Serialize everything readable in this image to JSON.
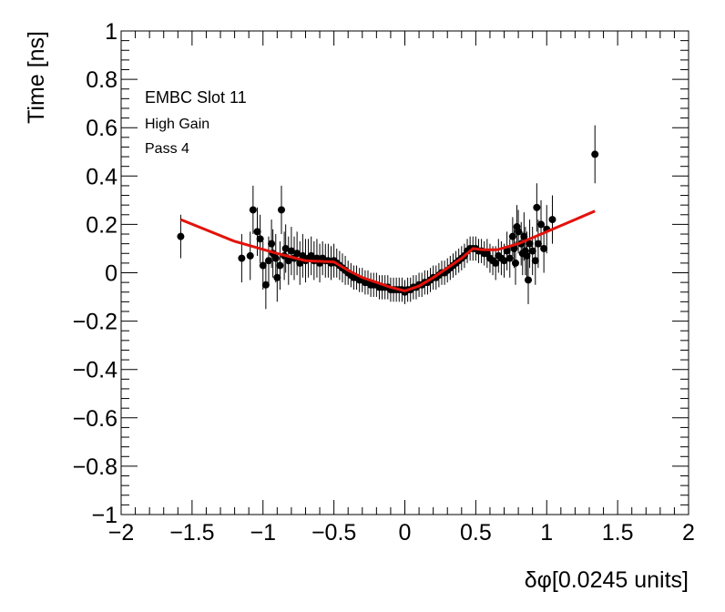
{
  "chart_data": {
    "type": "scatter",
    "title": "",
    "xlabel": "δφ[0.0245 units]",
    "ylabel": "Time [ns]",
    "xlim": [
      -2,
      2
    ],
    "ylim": [
      -1,
      1
    ],
    "x_ticks": [
      {
        "v": -2,
        "label": "−2"
      },
      {
        "v": -1.5,
        "label": "−1.5"
      },
      {
        "v": -1,
        "label": "−1"
      },
      {
        "v": -0.5,
        "label": "−0.5"
      },
      {
        "v": 0,
        "label": "0"
      },
      {
        "v": 0.5,
        "label": "0.5"
      },
      {
        "v": 1,
        "label": "1"
      },
      {
        "v": 1.5,
        "label": "1.5"
      },
      {
        "v": 2,
        "label": "2"
      }
    ],
    "y_ticks": [
      {
        "v": -1,
        "label": "−1"
      },
      {
        "v": -0.8,
        "label": "−0.8"
      },
      {
        "v": -0.6,
        "label": "−0.6"
      },
      {
        "v": -0.4,
        "label": "−0.4"
      },
      {
        "v": -0.2,
        "label": "−0.2"
      },
      {
        "v": 0,
        "label": "0"
      },
      {
        "v": 0.2,
        "label": "0.2"
      },
      {
        "v": 0.4,
        "label": "0.4"
      },
      {
        "v": 0.6,
        "label": "0.6"
      },
      {
        "v": 0.8,
        "label": "0.8"
      },
      {
        "v": 1,
        "label": "1"
      }
    ],
    "annotations": [
      "EMBC Slot 11",
      "High Gain",
      "Pass 4"
    ],
    "grid": false,
    "colors": {
      "points": "#000000",
      "fit": "#e3120b"
    },
    "points": [
      {
        "x": -1.58,
        "y": 0.15,
        "err": 0.09
      },
      {
        "x": -1.15,
        "y": 0.06,
        "err": 0.1
      },
      {
        "x": -1.09,
        "y": 0.07,
        "err": 0.1
      },
      {
        "x": -1.07,
        "y": 0.26,
        "err": 0.1
      },
      {
        "x": -1.04,
        "y": 0.17,
        "err": 0.1
      },
      {
        "x": -1.02,
        "y": 0.14,
        "err": 0.1
      },
      {
        "x": -1.0,
        "y": 0.03,
        "err": 0.1
      },
      {
        "x": -0.98,
        "y": -0.05,
        "err": 0.1
      },
      {
        "x": -0.96,
        "y": 0.05,
        "err": 0.1
      },
      {
        "x": -0.94,
        "y": 0.12,
        "err": 0.1
      },
      {
        "x": -0.93,
        "y": 0.08,
        "err": 0.1
      },
      {
        "x": -0.91,
        "y": 0.06,
        "err": 0.1
      },
      {
        "x": -0.9,
        "y": -0.02,
        "err": 0.1
      },
      {
        "x": -0.88,
        "y": 0.03,
        "err": 0.1
      },
      {
        "x": -0.87,
        "y": 0.26,
        "err": 0.1
      },
      {
        "x": -0.85,
        "y": 0.07,
        "err": 0.1
      },
      {
        "x": -0.84,
        "y": 0.1,
        "err": 0.1
      },
      {
        "x": -0.82,
        "y": 0.05,
        "err": 0.1
      },
      {
        "x": -0.8,
        "y": 0.09,
        "err": 0.1
      },
      {
        "x": -0.78,
        "y": 0.06,
        "err": 0.09
      },
      {
        "x": -0.76,
        "y": 0.08,
        "err": 0.09
      },
      {
        "x": -0.74,
        "y": 0.04,
        "err": 0.09
      },
      {
        "x": -0.72,
        "y": 0.07,
        "err": 0.09
      },
      {
        "x": -0.7,
        "y": 0.05,
        "err": 0.09
      },
      {
        "x": -0.68,
        "y": 0.06,
        "err": 0.08
      },
      {
        "x": -0.66,
        "y": 0.07,
        "err": 0.08
      },
      {
        "x": -0.64,
        "y": 0.05,
        "err": 0.08
      },
      {
        "x": -0.62,
        "y": 0.06,
        "err": 0.08
      },
      {
        "x": -0.6,
        "y": 0.04,
        "err": 0.08
      },
      {
        "x": -0.58,
        "y": 0.06,
        "err": 0.07
      },
      {
        "x": -0.56,
        "y": 0.05,
        "err": 0.07
      },
      {
        "x": -0.54,
        "y": 0.05,
        "err": 0.07
      },
      {
        "x": -0.52,
        "y": 0.04,
        "err": 0.07
      },
      {
        "x": -0.5,
        "y": 0.05,
        "err": 0.07
      },
      {
        "x": -0.48,
        "y": 0.04,
        "err": 0.06
      },
      {
        "x": -0.46,
        "y": 0.03,
        "err": 0.06
      },
      {
        "x": -0.44,
        "y": 0.02,
        "err": 0.06
      },
      {
        "x": -0.42,
        "y": 0.01,
        "err": 0.06
      },
      {
        "x": -0.4,
        "y": 0.0,
        "err": 0.05
      },
      {
        "x": -0.38,
        "y": -0.01,
        "err": 0.05
      },
      {
        "x": -0.36,
        "y": -0.02,
        "err": 0.05
      },
      {
        "x": -0.34,
        "y": -0.02,
        "err": 0.05
      },
      {
        "x": -0.32,
        "y": -0.03,
        "err": 0.05
      },
      {
        "x": -0.3,
        "y": -0.03,
        "err": 0.05
      },
      {
        "x": -0.28,
        "y": -0.04,
        "err": 0.05
      },
      {
        "x": -0.26,
        "y": -0.04,
        "err": 0.05
      },
      {
        "x": -0.24,
        "y": -0.05,
        "err": 0.05
      },
      {
        "x": -0.22,
        "y": -0.05,
        "err": 0.05
      },
      {
        "x": -0.2,
        "y": -0.05,
        "err": 0.05
      },
      {
        "x": -0.18,
        "y": -0.06,
        "err": 0.05
      },
      {
        "x": -0.16,
        "y": -0.06,
        "err": 0.05
      },
      {
        "x": -0.14,
        "y": -0.06,
        "err": 0.05
      },
      {
        "x": -0.12,
        "y": -0.06,
        "err": 0.05
      },
      {
        "x": -0.1,
        "y": -0.07,
        "err": 0.05
      },
      {
        "x": -0.08,
        "y": -0.07,
        "err": 0.05
      },
      {
        "x": -0.06,
        "y": -0.07,
        "err": 0.05
      },
      {
        "x": -0.04,
        "y": -0.07,
        "err": 0.05
      },
      {
        "x": -0.02,
        "y": -0.07,
        "err": 0.05
      },
      {
        "x": 0.0,
        "y": -0.08,
        "err": 0.05
      },
      {
        "x": 0.02,
        "y": -0.07,
        "err": 0.05
      },
      {
        "x": 0.04,
        "y": -0.07,
        "err": 0.05
      },
      {
        "x": 0.06,
        "y": -0.06,
        "err": 0.05
      },
      {
        "x": 0.08,
        "y": -0.06,
        "err": 0.05
      },
      {
        "x": 0.1,
        "y": -0.05,
        "err": 0.05
      },
      {
        "x": 0.12,
        "y": -0.05,
        "err": 0.05
      },
      {
        "x": 0.14,
        "y": -0.04,
        "err": 0.05
      },
      {
        "x": 0.16,
        "y": -0.04,
        "err": 0.05
      },
      {
        "x": 0.18,
        "y": -0.03,
        "err": 0.05
      },
      {
        "x": 0.2,
        "y": -0.02,
        "err": 0.05
      },
      {
        "x": 0.22,
        "y": -0.02,
        "err": 0.05
      },
      {
        "x": 0.24,
        "y": -0.01,
        "err": 0.05
      },
      {
        "x": 0.26,
        "y": 0.0,
        "err": 0.05
      },
      {
        "x": 0.28,
        "y": 0.0,
        "err": 0.05
      },
      {
        "x": 0.3,
        "y": 0.01,
        "err": 0.05
      },
      {
        "x": 0.32,
        "y": 0.02,
        "err": 0.05
      },
      {
        "x": 0.34,
        "y": 0.03,
        "err": 0.05
      },
      {
        "x": 0.36,
        "y": 0.04,
        "err": 0.05
      },
      {
        "x": 0.38,
        "y": 0.05,
        "err": 0.05
      },
      {
        "x": 0.4,
        "y": 0.06,
        "err": 0.05
      },
      {
        "x": 0.42,
        "y": 0.07,
        "err": 0.05
      },
      {
        "x": 0.44,
        "y": 0.09,
        "err": 0.05
      },
      {
        "x": 0.46,
        "y": 0.1,
        "err": 0.05
      },
      {
        "x": 0.48,
        "y": 0.1,
        "err": 0.05
      },
      {
        "x": 0.5,
        "y": 0.1,
        "err": 0.05
      },
      {
        "x": 0.52,
        "y": 0.09,
        "err": 0.05
      },
      {
        "x": 0.54,
        "y": 0.09,
        "err": 0.05
      },
      {
        "x": 0.56,
        "y": 0.08,
        "err": 0.05
      },
      {
        "x": 0.58,
        "y": 0.08,
        "err": 0.06
      },
      {
        "x": 0.6,
        "y": 0.06,
        "err": 0.06
      },
      {
        "x": 0.62,
        "y": 0.05,
        "err": 0.06
      },
      {
        "x": 0.64,
        "y": 0.04,
        "err": 0.07
      },
      {
        "x": 0.66,
        "y": 0.07,
        "err": 0.07
      },
      {
        "x": 0.68,
        "y": 0.06,
        "err": 0.07
      },
      {
        "x": 0.7,
        "y": 0.05,
        "err": 0.07
      },
      {
        "x": 0.72,
        "y": 0.09,
        "err": 0.08
      },
      {
        "x": 0.74,
        "y": 0.06,
        "err": 0.08
      },
      {
        "x": 0.76,
        "y": 0.15,
        "err": 0.08
      },
      {
        "x": 0.77,
        "y": 0.1,
        "err": 0.08
      },
      {
        "x": 0.78,
        "y": 0.04,
        "err": 0.09
      },
      {
        "x": 0.79,
        "y": 0.19,
        "err": 0.09
      },
      {
        "x": 0.8,
        "y": 0.17,
        "err": 0.09
      },
      {
        "x": 0.82,
        "y": 0.12,
        "err": 0.09
      },
      {
        "x": 0.83,
        "y": 0.08,
        "err": 0.09
      },
      {
        "x": 0.84,
        "y": 0.15,
        "err": 0.1
      },
      {
        "x": 0.85,
        "y": 0.09,
        "err": 0.1
      },
      {
        "x": 0.86,
        "y": 0.07,
        "err": 0.1
      },
      {
        "x": 0.87,
        "y": -0.03,
        "err": 0.1
      },
      {
        "x": 0.88,
        "y": 0.12,
        "err": 0.1
      },
      {
        "x": 0.9,
        "y": 0.09,
        "err": 0.1
      },
      {
        "x": 0.92,
        "y": 0.05,
        "err": 0.1
      },
      {
        "x": 0.93,
        "y": 0.27,
        "err": 0.1
      },
      {
        "x": 0.94,
        "y": 0.12,
        "err": 0.1
      },
      {
        "x": 0.96,
        "y": 0.2,
        "err": 0.1
      },
      {
        "x": 0.98,
        "y": 0.1,
        "err": 0.1
      },
      {
        "x": 1.0,
        "y": 0.18,
        "err": 0.1
      },
      {
        "x": 1.04,
        "y": 0.22,
        "err": 0.1
      },
      {
        "x": 1.34,
        "y": 0.49,
        "err": 0.12
      }
    ],
    "fit": {
      "x": [
        -1.58,
        -1.2,
        -0.9,
        -0.7,
        -0.5,
        -0.4,
        -0.3,
        -0.2,
        -0.1,
        0.0,
        0.1,
        0.2,
        0.3,
        0.4,
        0.48,
        0.55,
        0.65,
        0.8,
        1.0,
        1.2,
        1.34
      ],
      "y": [
        0.22,
        0.13,
        0.08,
        0.05,
        0.045,
        0.01,
        -0.02,
        -0.04,
        -0.06,
        -0.075,
        -0.055,
        -0.02,
        0.02,
        0.06,
        0.1,
        0.095,
        0.095,
        0.12,
        0.17,
        0.22,
        0.255
      ]
    }
  }
}
